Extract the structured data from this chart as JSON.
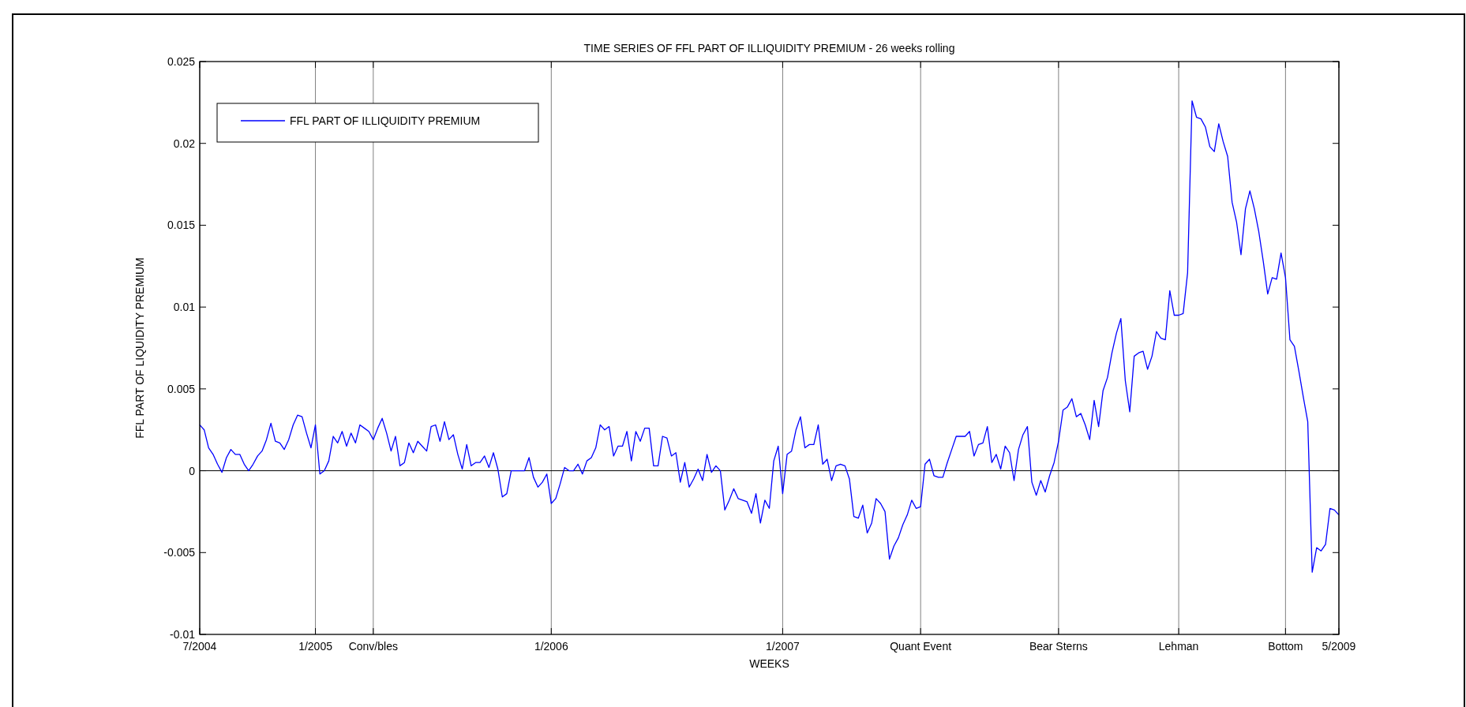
{
  "chart_data": {
    "type": "line",
    "title": "TIME SERIES OF FFL PART OF ILLIQUIDITY PREMIUM - 26 weeks rolling",
    "xlabel": "WEEKS",
    "ylabel": "FFL PART OF LIQUIDITY PREMIUM",
    "ylim": [
      -0.01,
      0.025
    ],
    "categories": [
      "7/2004",
      null,
      null,
      null,
      null,
      null,
      null,
      null,
      null,
      null,
      null,
      null,
      null,
      null,
      null,
      null,
      null,
      null,
      null,
      null,
      null,
      null,
      null,
      null,
      null,
      null,
      "1/2005",
      null,
      null,
      null,
      null,
      null,
      null,
      null,
      null,
      null,
      null,
      null,
      null,
      "Conv/bles",
      null,
      null,
      null,
      null,
      null,
      null,
      null,
      null,
      null,
      null,
      null,
      null,
      null,
      null,
      null,
      null,
      null,
      null,
      null,
      null,
      null,
      null,
      null,
      null,
      null,
      null,
      null,
      null,
      null,
      null,
      null,
      null,
      null,
      null,
      null,
      null,
      null,
      null,
      null,
      "1/2006",
      null,
      null,
      null,
      null,
      null,
      null,
      null,
      null,
      null,
      null,
      null,
      null,
      null,
      null,
      null,
      null,
      null,
      null,
      null,
      null,
      null,
      null,
      null,
      null,
      null,
      null,
      null,
      null,
      null,
      null,
      null,
      null,
      null,
      null,
      null,
      null,
      null,
      null,
      null,
      null,
      null,
      null,
      null,
      null,
      null,
      null,
      null,
      null,
      null,
      null,
      null,
      "1/2007",
      null,
      null,
      null,
      null,
      null,
      null,
      null,
      null,
      null,
      null,
      null,
      null,
      null,
      null,
      null,
      null,
      null,
      null,
      null,
      null,
      null,
      null,
      null,
      null,
      null,
      null,
      null,
      null,
      null,
      null,
      "Quant Event",
      null,
      null,
      null,
      null,
      null,
      null,
      null,
      null,
      null,
      null,
      null,
      null,
      null,
      null,
      null,
      null,
      null,
      null,
      null,
      null,
      null,
      null,
      null,
      null,
      null,
      null,
      null,
      null,
      null,
      null,
      "Bear Sterns",
      null,
      null,
      null,
      null,
      null,
      null,
      null,
      null,
      null,
      null,
      null,
      null,
      null,
      null,
      null,
      null,
      null,
      null,
      null,
      null,
      null,
      null,
      null,
      null,
      null,
      null,
      "Lehman",
      null,
      null,
      null,
      null,
      null,
      null,
      null,
      null,
      null,
      null,
      null,
      null,
      null,
      null,
      null,
      null,
      null,
      null,
      null,
      null,
      null,
      null,
      null,
      "Bottom",
      null,
      null,
      null,
      null,
      null,
      null,
      null,
      null,
      null,
      null,
      null,
      "5/2009"
    ],
    "yticks": [
      -0.01,
      -0.005,
      0,
      0.005,
      0.01,
      0.015,
      0.02,
      0.025
    ],
    "grid": "x",
    "legend": "top left",
    "marker": "none",
    "line_style": "solid",
    "ref_lines": [
      {
        "axis": "y",
        "value": 0,
        "color": "#000000"
      }
    ],
    "series": [
      {
        "name": "FFL PART OF ILLIQUIDITY PREMIUM",
        "color": "#0000ff",
        "values": [
          0.0028,
          0.0025,
          0.0014,
          0.001,
          0.0004,
          -0.0001,
          0.0008,
          0.0013,
          0.001,
          0.001,
          0.0004,
          0.0,
          0.0004,
          0.0009,
          0.0012,
          0.0019,
          0.0029,
          0.0018,
          0.0017,
          0.0013,
          0.0019,
          0.0028,
          0.0034,
          0.0033,
          0.0023,
          0.0014,
          0.0028,
          -0.0002,
          0.0,
          0.0006,
          0.0021,
          0.0017,
          0.0024,
          0.0015,
          0.0023,
          0.0017,
          0.0028,
          0.0026,
          0.0024,
          0.0019,
          0.0026,
          0.0032,
          0.0023,
          0.0012,
          0.0021,
          0.0003,
          0.0005,
          0.0017,
          0.0011,
          0.0018,
          0.0015,
          0.0012,
          0.0027,
          0.0028,
          0.0018,
          0.003,
          0.0019,
          0.0022,
          0.001,
          0.0001,
          0.0016,
          0.0003,
          0.0005,
          0.0005,
          0.0009,
          0.0002,
          0.0011,
          0.0001,
          -0.0016,
          -0.0014,
          0.0,
          0.0,
          0.0,
          0.0,
          0.0008,
          -0.0004,
          -0.001,
          -0.0007,
          -0.0002,
          -0.002,
          -0.0017,
          -0.0008,
          0.0002,
          0.0,
          0.0,
          0.0004,
          -0.0002,
          0.0006,
          0.0008,
          0.0014,
          0.0028,
          0.0025,
          0.0027,
          0.0009,
          0.0015,
          0.0015,
          0.0024,
          0.0006,
          0.0024,
          0.0018,
          0.0026,
          0.0026,
          0.0003,
          0.0003,
          0.0021,
          0.002,
          0.0009,
          0.0011,
          -0.0007,
          0.0005,
          -0.001,
          -0.0005,
          0.0001,
          -0.0006,
          0.001,
          -0.0001,
          0.0003,
          0.0,
          -0.0024,
          -0.0018,
          -0.0011,
          -0.0017,
          -0.0018,
          -0.0019,
          -0.0026,
          -0.0014,
          -0.0032,
          -0.0018,
          -0.0023,
          0.0006,
          0.0015,
          -0.0014,
          0.001,
          0.0012,
          0.0025,
          0.0033,
          0.0014,
          0.0016,
          0.0016,
          0.0028,
          0.0004,
          0.0007,
          -0.0006,
          0.0003,
          0.0004,
          0.0003,
          -0.0005,
          -0.0028,
          -0.0029,
          -0.0021,
          -0.0038,
          -0.0032,
          -0.0017,
          -0.002,
          -0.0025,
          -0.0054,
          -0.0046,
          -0.0041,
          -0.0033,
          -0.0027,
          -0.0018,
          -0.0023,
          -0.0022,
          0.0004,
          0.0007,
          -0.0003,
          -0.0004,
          -0.0004,
          0.0005,
          0.0013,
          0.0021,
          0.0021,
          0.0021,
          0.0024,
          0.0009,
          0.0016,
          0.0017,
          0.0027,
          0.0005,
          0.001,
          0.0001,
          0.0015,
          0.0011,
          -0.0006,
          0.0013,
          0.0022,
          0.0027,
          -0.0007,
          -0.0015,
          -0.0006,
          -0.0013,
          -0.0003,
          0.0005,
          0.0018,
          0.0037,
          0.0039,
          0.0044,
          0.0033,
          0.0035,
          0.0028,
          0.0019,
          0.0043,
          0.0027,
          0.0049,
          0.0057,
          0.0072,
          0.0084,
          0.0093,
          0.0055,
          0.0036,
          0.007,
          0.0072,
          0.0073,
          0.0062,
          0.007,
          0.0085,
          0.0081,
          0.008,
          0.011,
          0.0095,
          0.0095,
          0.0096,
          0.0121,
          0.0226,
          0.0216,
          0.0215,
          0.021,
          0.0198,
          0.0195,
          0.0212,
          0.0201,
          0.0192,
          0.0164,
          0.0152,
          0.0132,
          0.016,
          0.0171,
          0.016,
          0.0146,
          0.0128,
          0.0108,
          0.0118,
          0.0117,
          0.0133,
          0.0118,
          0.008,
          0.0076,
          0.0061,
          0.0045,
          0.003,
          -0.0062,
          -0.0047,
          -0.0049,
          -0.0045,
          -0.0023,
          -0.0024,
          -0.0027
        ]
      }
    ]
  }
}
